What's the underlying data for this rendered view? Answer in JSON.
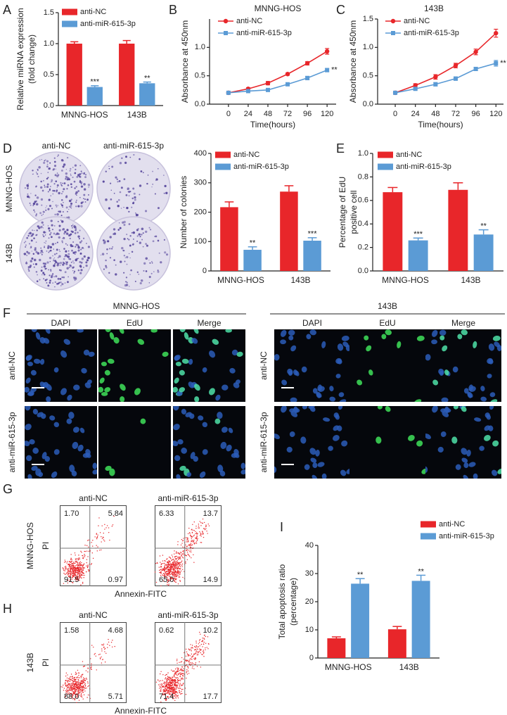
{
  "panel_labels": [
    "A",
    "B",
    "C",
    "D",
    "E",
    "F",
    "G",
    "H",
    "I"
  ],
  "chart_data": [
    {
      "type": "bar",
      "y_label": [
        "Relative miRNA expression",
        "(fold change)"
      ],
      "categories": [
        "MNNG-HOS",
        "143B"
      ],
      "series": [
        {
          "name": "anti-NC",
          "color": "#e8262a",
          "values": [
            1.0,
            1.0
          ],
          "errors": [
            0.03,
            0.05
          ]
        },
        {
          "name": "anti-miR-615-3p",
          "color": "#5b9bd5",
          "values": [
            0.3,
            0.36
          ],
          "errors": [
            0.02,
            0.02
          ],
          "significance": [
            "***",
            "**"
          ]
        }
      ],
      "ylim": [
        0,
        1.5
      ],
      "yticks": [
        {
          "value": 0,
          "label": "0.0"
        },
        {
          "value": 0.5,
          "label": "0.5"
        },
        {
          "value": 1,
          "label": "1.0"
        },
        {
          "value": 1.5,
          "label": "1.5"
        }
      ]
    },
    {
      "type": "line",
      "title": "MNNG-HOS",
      "y_label": [
        "Absorbance at 450nm"
      ],
      "x_label": "Time(hours)",
      "x": [
        0,
        24,
        48,
        72,
        96,
        120
      ],
      "series": [
        {
          "name": "anti-NC",
          "color": "#e8262a",
          "marker": "circle",
          "values": [
            0.2,
            0.27,
            0.37,
            0.53,
            0.72,
            0.93
          ],
          "errors": [
            0.01,
            0.02,
            0.03,
            0.02,
            0.03,
            0.05
          ]
        },
        {
          "name": "anti-miR-615-3p",
          "color": "#5b9bd5",
          "marker": "square",
          "values": [
            0.2,
            0.23,
            0.25,
            0.35,
            0.46,
            0.6
          ],
          "errors": [
            0.01,
            0.01,
            0.02,
            0.02,
            0.03,
            0.03
          ],
          "significance": [
            null,
            null,
            null,
            null,
            null,
            "**"
          ]
        }
      ],
      "xlim": [
        -23,
        131
      ],
      "xticks": [
        0,
        24,
        48,
        72,
        96,
        120
      ],
      "ylim": [
        0,
        1.5
      ],
      "yticks": [
        {
          "value": 0,
          "label": "0.0"
        },
        {
          "value": 0.5,
          "label": "0.5"
        },
        {
          "value": 1,
          "label": "1.0"
        }
      ]
    },
    {
      "type": "line",
      "title": "143B",
      "y_label": [
        "Absorbance at 450nm"
      ],
      "x_label": "Time(hours)",
      "x": [
        0,
        24,
        48,
        72,
        96,
        120
      ],
      "series": [
        {
          "name": "anti-NC",
          "color": "#e8262a",
          "marker": "circle",
          "values": [
            0.2,
            0.33,
            0.48,
            0.68,
            0.92,
            1.25
          ],
          "errors": [
            0.01,
            0.03,
            0.04,
            0.04,
            0.05,
            0.07
          ]
        },
        {
          "name": "anti-miR-615-3p",
          "color": "#5b9bd5",
          "marker": "square",
          "values": [
            0.2,
            0.27,
            0.35,
            0.45,
            0.62,
            0.72
          ],
          "errors": [
            0.01,
            0.02,
            0.03,
            0.03,
            0.03,
            0.05
          ],
          "significance": [
            null,
            null,
            null,
            null,
            null,
            "**"
          ]
        }
      ],
      "xlim": [
        -21,
        129
      ],
      "xticks": [
        0,
        24,
        48,
        72,
        96,
        120
      ],
      "ylim": [
        0,
        1.5
      ],
      "yticks": [
        {
          "value": 0,
          "label": "0.0"
        },
        {
          "value": 0.5,
          "label": "0.5"
        },
        {
          "value": 1,
          "label": "1.0"
        },
        {
          "value": 1.5,
          "label": "1.5"
        }
      ]
    },
    {
      "type": "bar",
      "y_label": [
        "Number of colonies"
      ],
      "categories": [
        "MNNG-HOS",
        "143B"
      ],
      "series": [
        {
          "name": "anti-NC",
          "color": "#e8262a",
          "values": [
            217,
            270
          ],
          "errors": [
            18,
            20
          ]
        },
        {
          "name": "anti-miR-615-3p",
          "color": "#5b9bd5",
          "values": [
            72,
            103
          ],
          "errors": [
            10,
            10
          ],
          "significance": [
            "**",
            "***"
          ]
        }
      ],
      "ylim": [
        0,
        400
      ],
      "yticks": [
        0,
        100,
        200,
        300,
        400
      ]
    },
    {
      "type": "bar",
      "y_label": [
        "Percentage of EdU",
        "positive cell"
      ],
      "categories": [
        "MNNG-HOS",
        "143B"
      ],
      "series": [
        {
          "name": "anti-NC",
          "color": "#e8262a",
          "values": [
            0.67,
            0.69
          ],
          "errors": [
            0.04,
            0.06
          ]
        },
        {
          "name": "anti-miR-615-3p",
          "color": "#5b9bd5",
          "values": [
            0.26,
            0.31
          ],
          "errors": [
            0.02,
            0.04
          ],
          "significance": [
            "***",
            "**"
          ]
        }
      ],
      "ylim": [
        0,
        1
      ],
      "yticks": [
        {
          "value": 0,
          "label": "0.0"
        },
        {
          "value": 0.2,
          "label": "0.2"
        },
        {
          "value": 0.4,
          "label": "0.4"
        },
        {
          "value": 0.6,
          "label": "0.6"
        },
        {
          "value": 0.8,
          "label": "0.8"
        },
        {
          "value": 1,
          "label": "1.0"
        }
      ]
    },
    {
      "type": "bar",
      "y_label": [
        "Total apoptosis ratio",
        "(percentage)"
      ],
      "categories": [
        "MNNG-HOS",
        "143B"
      ],
      "series": [
        {
          "name": "anti-NC",
          "color": "#e8262a",
          "values": [
            7,
            10.2
          ],
          "errors": [
            0.5,
            1
          ]
        },
        {
          "name": "anti-miR-615-3p",
          "color": "#5b9bd5",
          "values": [
            26.4,
            27.4
          ],
          "errors": [
            1.8,
            2
          ],
          "significance": [
            "**",
            "**"
          ]
        }
      ],
      "ylim": [
        0,
        40
      ],
      "yticks": [
        0,
        10,
        20,
        30,
        40
      ]
    }
  ],
  "colony": {
    "columns": [
      "anti-NC",
      "anti-miR-615-3p"
    ],
    "rows": [
      "MNNG-HOS",
      "143B"
    ]
  },
  "edu": {
    "groups": [
      "MNNG-HOS",
      "143B"
    ],
    "columns": [
      "DAPI",
      "EdU",
      "Merge"
    ],
    "rows": [
      "anti-NC",
      "anti-miR-615-3p"
    ]
  },
  "flow": {
    "columns": [
      "anti-NC",
      "anti-miR-615-3p"
    ],
    "y_label": "PI",
    "x_label": "Annexin-FITC",
    "rows": [
      {
        "label": "MNNG-HOS",
        "quadrants": [
          [
            "1.70",
            "5.84",
            "91.5",
            "0.97"
          ],
          [
            "6.33",
            "13.7",
            "65.0",
            "14.9"
          ]
        ]
      },
      {
        "label": "143B",
        "quadrants": [
          [
            "1.58",
            "4.68",
            "88.0",
            "5.71"
          ],
          [
            "0.62",
            "10.2",
            "71.4",
            "17.7"
          ]
        ]
      }
    ]
  }
}
